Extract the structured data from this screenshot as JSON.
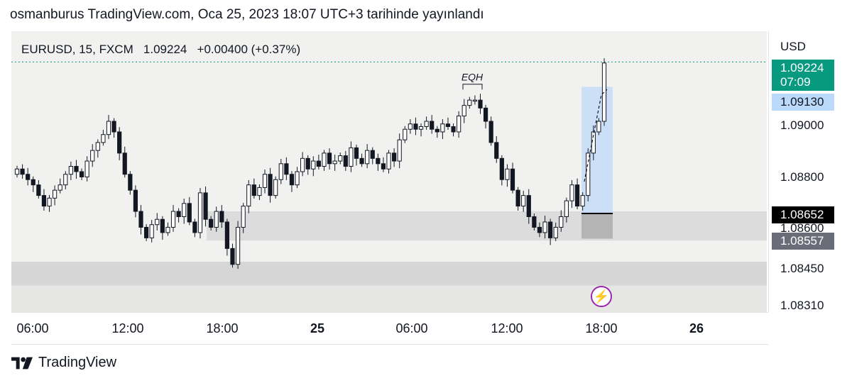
{
  "header": {
    "published": "osmanburus TradingView.com, Oca 25, 2023 18:07 UTC+3 tarihinde yayınlandı"
  },
  "legend": {
    "symbol": "EURUSD, 15, FXCM",
    "last": "1.09224",
    "change": "+0.00400 (+0.37%)"
  },
  "price_axis": {
    "currency": "USD",
    "ticks": [
      "1.09000",
      "1.08800",
      "1.08600",
      "1.08450",
      "1.08310"
    ],
    "badges": [
      {
        "value": "1.09224",
        "sub": "07:09",
        "color": "#089981"
      },
      {
        "value": "1.09130",
        "color": "#bbd9fb",
        "text_color": "#131722"
      },
      {
        "value": "1.08652",
        "color": "#000000"
      },
      {
        "value": "1.08557",
        "color": "#6a6d78"
      }
    ]
  },
  "time_axis": {
    "ticks": [
      "06:00",
      "12:00",
      "18:00",
      "25",
      "06:00",
      "12:00",
      "18:00",
      "26"
    ]
  },
  "annotations": {
    "eqh": "EQH"
  },
  "branding": {
    "name": "TradingView"
  },
  "chart_data": {
    "type": "candlestick",
    "symbol": "EURUSD",
    "interval": "15",
    "ylim": [
      1.0828,
      1.0934
    ],
    "last_price": 1.09224,
    "ohlc_close_series": [
      1.0882,
      1.088,
      1.0878,
      1.0876,
      1.0872,
      1.0868,
      1.0871,
      1.0874,
      1.0876,
      1.088,
      1.0883,
      1.0881,
      1.0879,
      1.0885,
      1.0889,
      1.0892,
      1.0895,
      1.09,
      1.0896,
      1.0888,
      1.088,
      1.0874,
      1.0866,
      1.086,
      1.0856,
      1.0861,
      1.0863,
      1.0858,
      1.086,
      1.0866,
      1.0864,
      1.0869,
      1.0862,
      1.0858,
      1.0873,
      1.0863,
      1.086,
      1.0866,
      1.0862,
      1.0852,
      1.0846,
      1.086,
      1.0868,
      1.0876,
      1.0872,
      1.0875,
      1.088,
      1.0872,
      1.0878,
      1.0884,
      1.088,
      1.0876,
      1.0881,
      1.0886,
      1.0882,
      1.0885,
      1.0883,
      1.0888,
      1.0884,
      1.0885,
      1.0887,
      1.0883,
      1.089,
      1.0886,
      1.0884,
      1.0889,
      1.0886,
      1.0884,
      1.0882,
      1.0888,
      1.0885,
      1.0893,
      1.0897,
      1.0899,
      1.0897,
      1.0898,
      1.09,
      1.0897,
      1.0896,
      1.0899,
      1.0898,
      1.0896,
      1.0902,
      1.0906,
      1.0908,
      1.0908,
      1.0905,
      1.09,
      1.0892,
      1.0886,
      1.0878,
      1.0882,
      1.0874,
      1.0868,
      1.0872,
      1.0864,
      1.086,
      1.0858,
      1.0862,
      1.0856,
      1.086,
      1.0864,
      1.087,
      1.0876,
      1.0868,
      1.0872,
      1.0888,
      1.0896,
      1.09,
      1.0922
    ],
    "zones": [
      {
        "name": "demand zone upper",
        "from": 1.0855,
        "to": 1.0866
      },
      {
        "name": "demand zone lower",
        "from": 1.0838,
        "to": 1.0847
      }
    ],
    "position": {
      "entry": 1.08652,
      "target": 1.0913,
      "stop": 1.08557
    }
  }
}
